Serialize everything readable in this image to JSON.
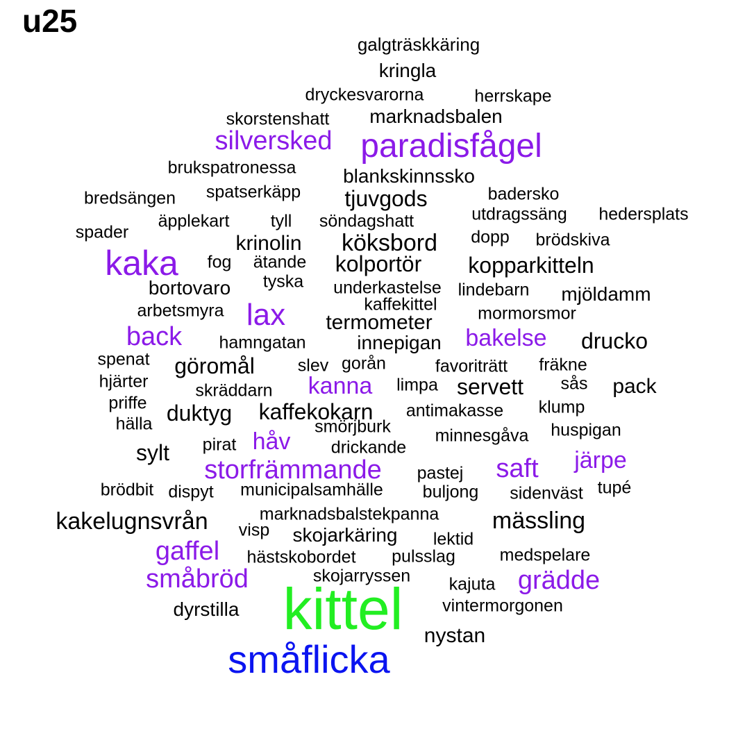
{
  "title": "u25",
  "colors": {
    "c0": "#000000",
    "c1": "#8b1ae8",
    "c2": "#0a14f0",
    "c3": "#22ee22"
  },
  "words": [
    {
      "text": "galgträskkäring",
      "c": "c0"
    },
    {
      "text": "kringla",
      "c": "c0"
    },
    {
      "text": "dryckesvarorna",
      "c": "c0"
    },
    {
      "text": "herrskape",
      "c": "c0"
    },
    {
      "text": "skorstenshatt",
      "c": "c0"
    },
    {
      "text": "marknadsbalen",
      "c": "c0"
    },
    {
      "text": "silversked",
      "c": "c1"
    },
    {
      "text": "paradisfågel",
      "c": "c1"
    },
    {
      "text": "brukspatronessa",
      "c": "c0"
    },
    {
      "text": "blankskinnssko",
      "c": "c0"
    },
    {
      "text": "bredsängen",
      "c": "c0"
    },
    {
      "text": "spatserkäpp",
      "c": "c0"
    },
    {
      "text": "tjuvgods",
      "c": "c0"
    },
    {
      "text": "badersko",
      "c": "c0"
    },
    {
      "text": "utdragssäng",
      "c": "c0"
    },
    {
      "text": "hedersplats",
      "c": "c0"
    },
    {
      "text": "äpplekart",
      "c": "c0"
    },
    {
      "text": "tyll",
      "c": "c0"
    },
    {
      "text": "söndagshatt",
      "c": "c0"
    },
    {
      "text": "spader",
      "c": "c0"
    },
    {
      "text": "krinolin",
      "c": "c0"
    },
    {
      "text": "köksbord",
      "c": "c0"
    },
    {
      "text": "dopp",
      "c": "c0"
    },
    {
      "text": "brödskiva",
      "c": "c0"
    },
    {
      "text": "kaka",
      "c": "c1"
    },
    {
      "text": "fog",
      "c": "c0"
    },
    {
      "text": "ätande",
      "c": "c0"
    },
    {
      "text": "kolportör",
      "c": "c0"
    },
    {
      "text": "kopparkitteln",
      "c": "c0"
    },
    {
      "text": "tyska",
      "c": "c0"
    },
    {
      "text": "bortovaro",
      "c": "c0"
    },
    {
      "text": "underkastelse",
      "c": "c0"
    },
    {
      "text": "lindebarn",
      "c": "c0"
    },
    {
      "text": "mjöldamm",
      "c": "c0"
    },
    {
      "text": "kaffekittel",
      "c": "c0"
    },
    {
      "text": "arbetsmyra",
      "c": "c0"
    },
    {
      "text": "lax",
      "c": "c1"
    },
    {
      "text": "mormorsmor",
      "c": "c0"
    },
    {
      "text": "termometer",
      "c": "c0"
    },
    {
      "text": "back",
      "c": "c1"
    },
    {
      "text": "bakelse",
      "c": "c1"
    },
    {
      "text": "hamngatan",
      "c": "c0"
    },
    {
      "text": "innepigan",
      "c": "c0"
    },
    {
      "text": "drucko",
      "c": "c0"
    },
    {
      "text": "spenat",
      "c": "c0"
    },
    {
      "text": "göromål",
      "c": "c0"
    },
    {
      "text": "slev",
      "c": "c0"
    },
    {
      "text": "gorån",
      "c": "c0"
    },
    {
      "text": "favoriträtt",
      "c": "c0"
    },
    {
      "text": "fräkne",
      "c": "c0"
    },
    {
      "text": "hjärter",
      "c": "c0"
    },
    {
      "text": "kanna",
      "c": "c1"
    },
    {
      "text": "limpa",
      "c": "c0"
    },
    {
      "text": "servett",
      "c": "c0"
    },
    {
      "text": "sås",
      "c": "c0"
    },
    {
      "text": "pack",
      "c": "c0"
    },
    {
      "text": "skräddarn",
      "c": "c0"
    },
    {
      "text": "priffe",
      "c": "c0"
    },
    {
      "text": "klump",
      "c": "c0"
    },
    {
      "text": "duktyg",
      "c": "c0"
    },
    {
      "text": "kaffekokarn",
      "c": "c0"
    },
    {
      "text": "antimakasse",
      "c": "c0"
    },
    {
      "text": "hälla",
      "c": "c0"
    },
    {
      "text": "smörjburk",
      "c": "c0"
    },
    {
      "text": "huspigan",
      "c": "c0"
    },
    {
      "text": "minnesgåva",
      "c": "c0"
    },
    {
      "text": "håv",
      "c": "c1"
    },
    {
      "text": "pirat",
      "c": "c0"
    },
    {
      "text": "drickande",
      "c": "c0"
    },
    {
      "text": "sylt",
      "c": "c0"
    },
    {
      "text": "järpe",
      "c": "c1"
    },
    {
      "text": "storfrämmande",
      "c": "c1"
    },
    {
      "text": "saft",
      "c": "c1"
    },
    {
      "text": "pastej",
      "c": "c0"
    },
    {
      "text": "brödbit",
      "c": "c0"
    },
    {
      "text": "dispyt",
      "c": "c0"
    },
    {
      "text": "municipalsamhälle",
      "c": "c0"
    },
    {
      "text": "buljong",
      "c": "c0"
    },
    {
      "text": "sidenväst",
      "c": "c0"
    },
    {
      "text": "tupé",
      "c": "c0"
    },
    {
      "text": "marknadsbalstekpanna",
      "c": "c0"
    },
    {
      "text": "kakelugnsvrån",
      "c": "c0"
    },
    {
      "text": "mässling",
      "c": "c0"
    },
    {
      "text": "visp",
      "c": "c0"
    },
    {
      "text": "skojarkäring",
      "c": "c0"
    },
    {
      "text": "lektid",
      "c": "c0"
    },
    {
      "text": "gaffel",
      "c": "c1"
    },
    {
      "text": "medspelare",
      "c": "c0"
    },
    {
      "text": "hästskobordet",
      "c": "c0"
    },
    {
      "text": "pulsslag",
      "c": "c0"
    },
    {
      "text": "skojarryssen",
      "c": "c0"
    },
    {
      "text": "småbröd",
      "c": "c1"
    },
    {
      "text": "kajuta",
      "c": "c0"
    },
    {
      "text": "grädde",
      "c": "c1"
    },
    {
      "text": "vintermorgonen",
      "c": "c0"
    },
    {
      "text": "dyrstilla",
      "c": "c0"
    },
    {
      "text": "kittel",
      "c": "c3"
    },
    {
      "text": "nystan",
      "c": "c0"
    },
    {
      "text": "småflicka",
      "c": "c2"
    }
  ]
}
